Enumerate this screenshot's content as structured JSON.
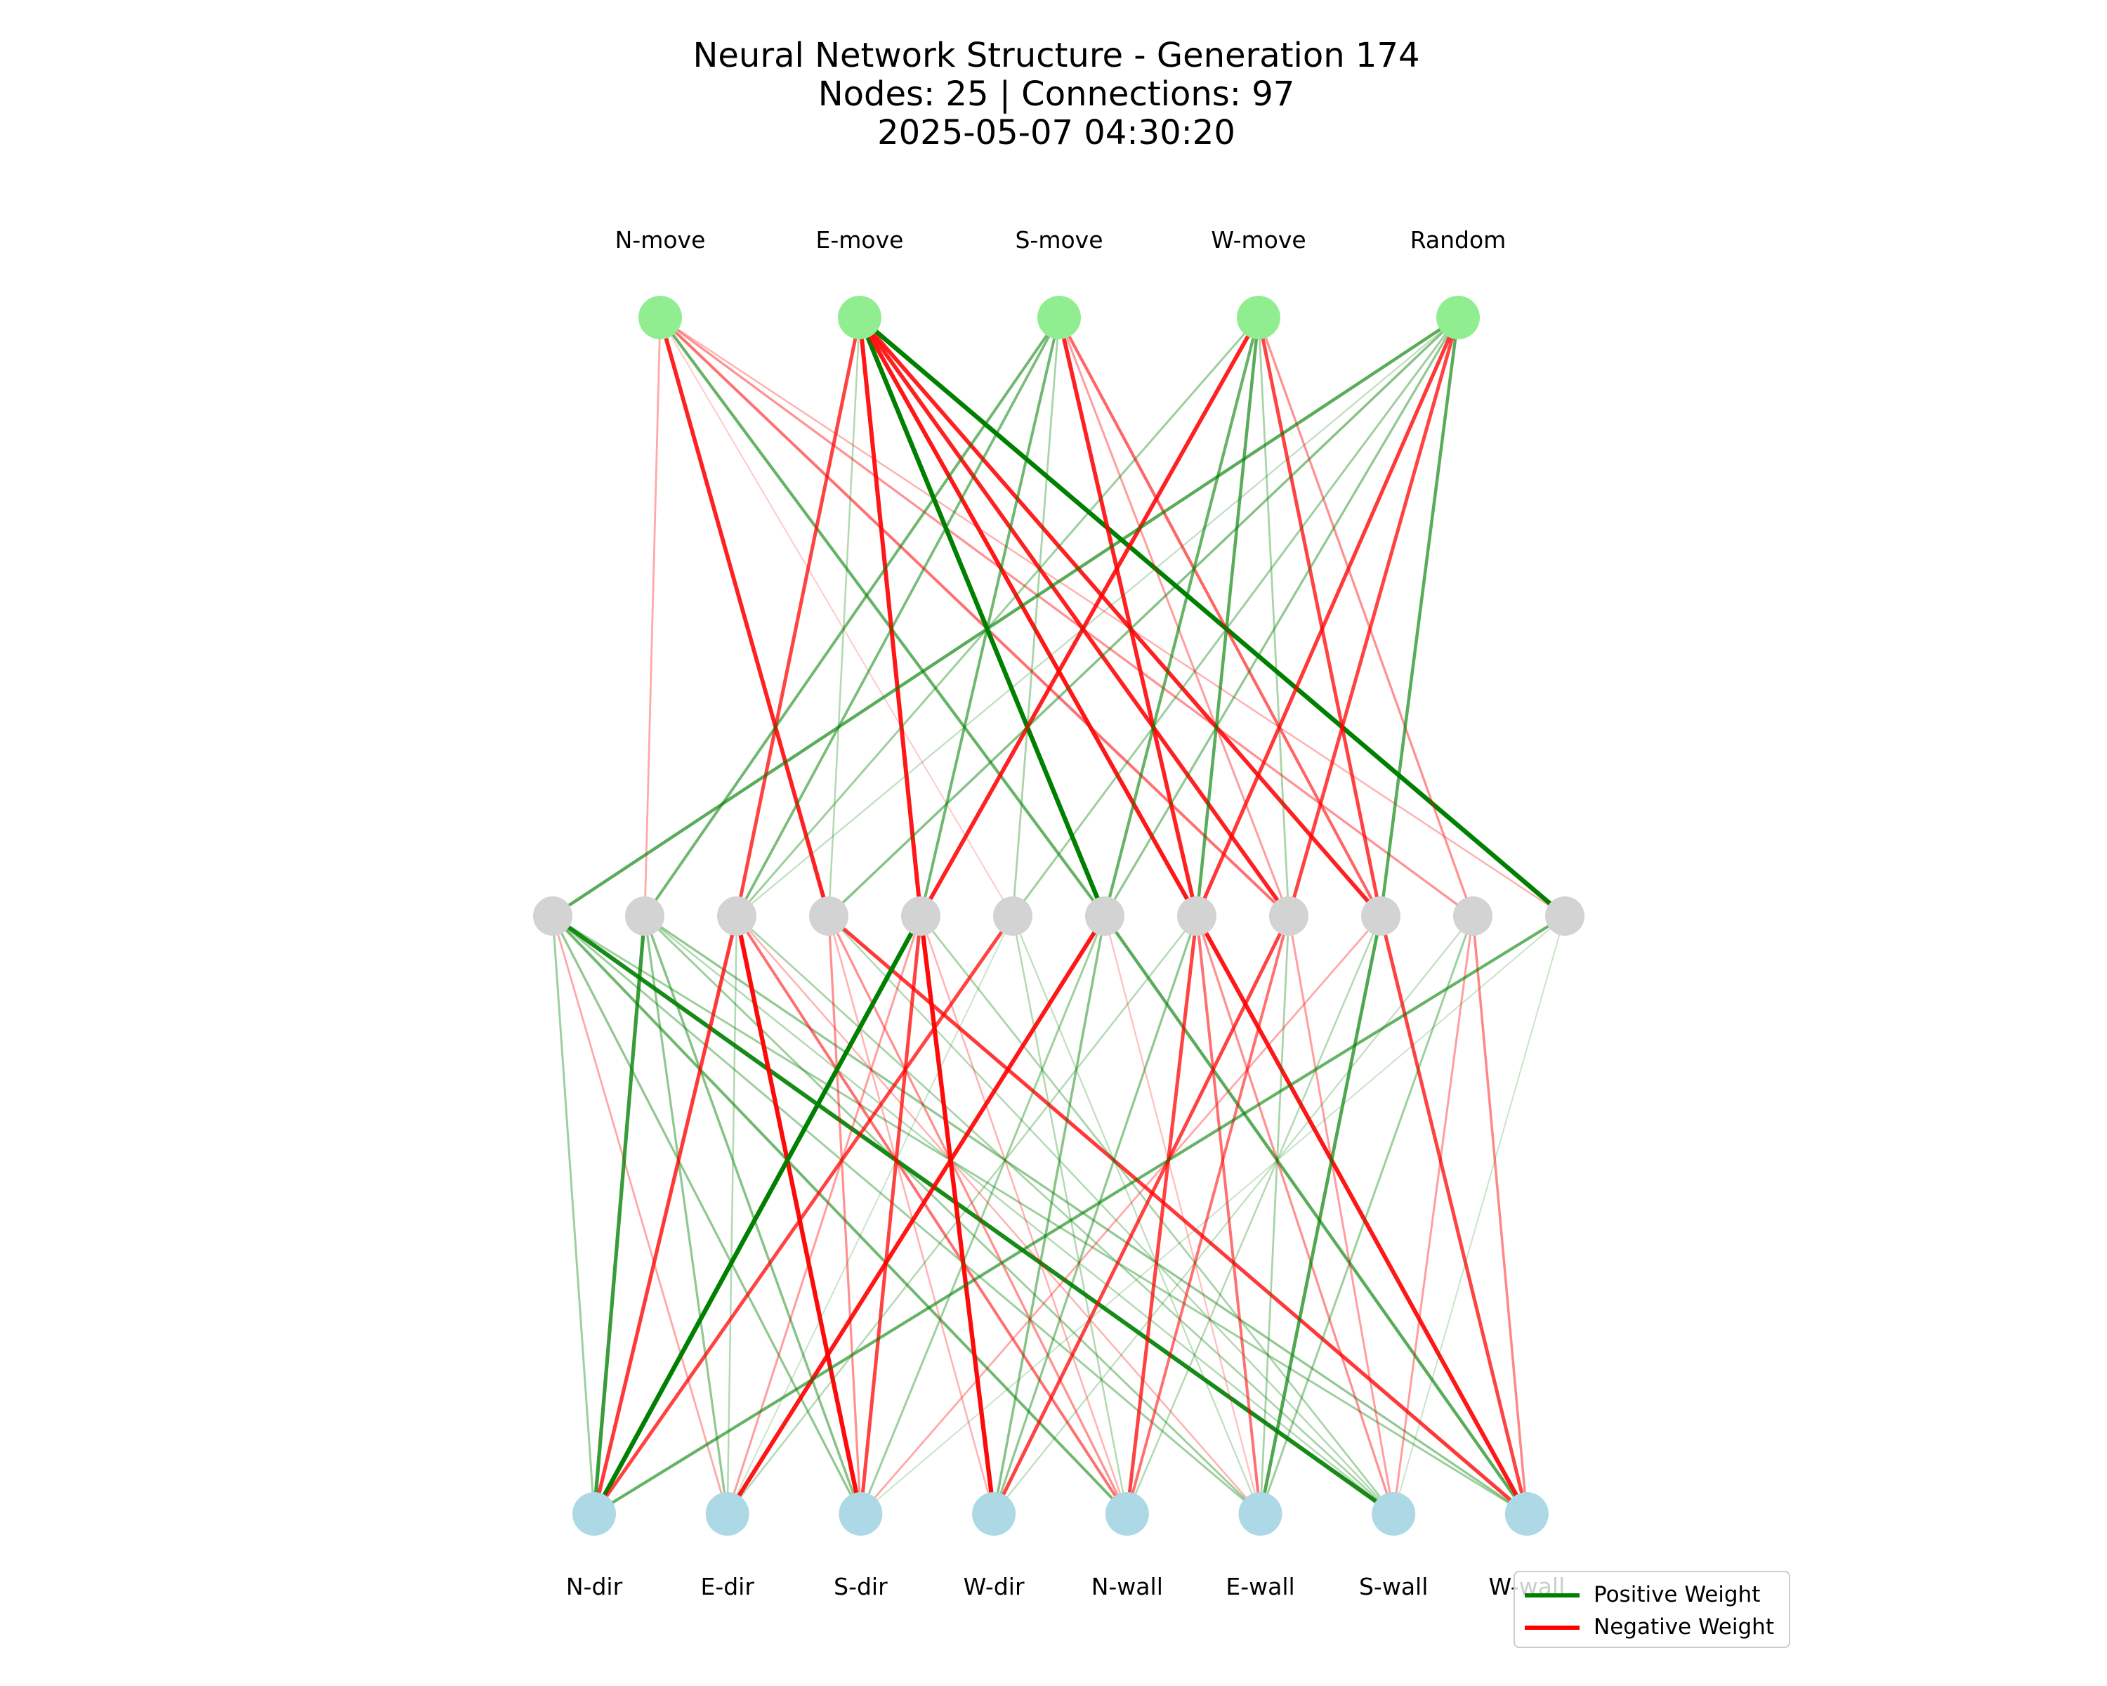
{
  "title": {
    "line1": "Neural Network Structure - Generation 174",
    "line2": "Nodes: 25 | Connections: 97",
    "line3": "2025-05-07 04:30:20"
  },
  "colors": {
    "positive": "#008000",
    "negative": "#ff0000",
    "output_node": "#90ee90",
    "hidden_node": "#d3d3d3",
    "input_node": "#add8e6"
  },
  "layers": {
    "outputs": [
      "N-move",
      "E-move",
      "S-move",
      "W-move",
      "Random"
    ],
    "hidden_count": 12,
    "inputs": [
      "N-dir",
      "E-dir",
      "S-dir",
      "W-dir",
      "N-wall",
      "E-wall",
      "S-wall",
      "W-wall"
    ]
  },
  "connections": [
    {
      "from": "o0",
      "to": "h1",
      "weight": -0.25
    },
    {
      "from": "o0",
      "to": "h3",
      "weight": -0.85
    },
    {
      "from": "o0",
      "to": "h5",
      "weight": -0.1
    },
    {
      "from": "o0",
      "to": "h6",
      "weight": 0.55
    },
    {
      "from": "o0",
      "to": "h8",
      "weight": -0.5
    },
    {
      "from": "o0",
      "to": "h10",
      "weight": -0.35
    },
    {
      "from": "o0",
      "to": "h11",
      "weight": -0.2
    },
    {
      "from": "o1",
      "to": "h2",
      "weight": -0.7
    },
    {
      "from": "o1",
      "to": "h4",
      "weight": -0.9
    },
    {
      "from": "o1",
      "to": "h6",
      "weight": 1.0
    },
    {
      "from": "o1",
      "to": "h7",
      "weight": -0.9
    },
    {
      "from": "o1",
      "to": "h8",
      "weight": -0.85
    },
    {
      "from": "o1",
      "to": "h9",
      "weight": -0.85
    },
    {
      "from": "o1",
      "to": "h11",
      "weight": 1.0
    },
    {
      "from": "o1",
      "to": "h3",
      "weight": 0.2
    },
    {
      "from": "o2",
      "to": "h1",
      "weight": 0.5
    },
    {
      "from": "o2",
      "to": "h2",
      "weight": 0.45
    },
    {
      "from": "o2",
      "to": "h4",
      "weight": 0.5
    },
    {
      "from": "o2",
      "to": "h7",
      "weight": -0.85
    },
    {
      "from": "o2",
      "to": "h8",
      "weight": -0.3
    },
    {
      "from": "o2",
      "to": "h9",
      "weight": -0.55
    },
    {
      "from": "o2",
      "to": "h5",
      "weight": 0.25
    },
    {
      "from": "o3",
      "to": "h2",
      "weight": 0.3
    },
    {
      "from": "o3",
      "to": "h4",
      "weight": -0.85
    },
    {
      "from": "o3",
      "to": "h6",
      "weight": 0.55
    },
    {
      "from": "o3",
      "to": "h7",
      "weight": 0.6
    },
    {
      "from": "o3",
      "to": "h8",
      "weight": 0.25
    },
    {
      "from": "o3",
      "to": "h9",
      "weight": -0.7
    },
    {
      "from": "o3",
      "to": "h10",
      "weight": -0.35
    },
    {
      "from": "o4",
      "to": "h0",
      "weight": 0.6
    },
    {
      "from": "o4",
      "to": "h3",
      "weight": 0.4
    },
    {
      "from": "o4",
      "to": "h5",
      "weight": 0.3
    },
    {
      "from": "o4",
      "to": "h6",
      "weight": 0.35
    },
    {
      "from": "o4",
      "to": "h7",
      "weight": -0.75
    },
    {
      "from": "o4",
      "to": "h8",
      "weight": -0.7
    },
    {
      "from": "o4",
      "to": "h9",
      "weight": 0.6
    },
    {
      "from": "o4",
      "to": "h2",
      "weight": 0.15
    },
    {
      "from": "h0",
      "to": "i0",
      "weight": 0.3
    },
    {
      "from": "h0",
      "to": "i2",
      "weight": 0.35
    },
    {
      "from": "h0",
      "to": "i4",
      "weight": 0.5
    },
    {
      "from": "h0",
      "to": "i5",
      "weight": 0.3
    },
    {
      "from": "h0",
      "to": "i6",
      "weight": 0.9
    },
    {
      "from": "h0",
      "to": "i7",
      "weight": 0.3
    },
    {
      "from": "h0",
      "to": "i1",
      "weight": -0.25
    },
    {
      "from": "h1",
      "to": "i0",
      "weight": 0.75
    },
    {
      "from": "h1",
      "to": "i1",
      "weight": 0.35
    },
    {
      "from": "h1",
      "to": "i2",
      "weight": 0.4
    },
    {
      "from": "h1",
      "to": "i5",
      "weight": 0.3
    },
    {
      "from": "h1",
      "to": "i6",
      "weight": 0.2
    },
    {
      "from": "h1",
      "to": "i7",
      "weight": 0.35
    },
    {
      "from": "h2",
      "to": "i0",
      "weight": -0.75
    },
    {
      "from": "h2",
      "to": "i2",
      "weight": -0.95
    },
    {
      "from": "h2",
      "to": "i4",
      "weight": -0.5
    },
    {
      "from": "h2",
      "to": "i5",
      "weight": -0.2
    },
    {
      "from": "h2",
      "to": "i6",
      "weight": 0.25
    },
    {
      "from": "h2",
      "to": "i1",
      "weight": 0.2
    },
    {
      "from": "h3",
      "to": "i2",
      "weight": -0.35
    },
    {
      "from": "h3",
      "to": "i3",
      "weight": -0.2
    },
    {
      "from": "h3",
      "to": "i4",
      "weight": -0.35
    },
    {
      "from": "h3",
      "to": "i7",
      "weight": -0.75
    },
    {
      "from": "h3",
      "to": "i6",
      "weight": 0.2
    },
    {
      "from": "h4",
      "to": "i0",
      "weight": 1.0
    },
    {
      "from": "h4",
      "to": "i1",
      "weight": -0.3
    },
    {
      "from": "h4",
      "to": "i2",
      "weight": -0.7
    },
    {
      "from": "h4",
      "to": "i3",
      "weight": -0.95
    },
    {
      "from": "h4",
      "to": "i4",
      "weight": -0.2
    },
    {
      "from": "h4",
      "to": "i6",
      "weight": 0.25
    },
    {
      "from": "h5",
      "to": "i0",
      "weight": -0.7
    },
    {
      "from": "h5",
      "to": "i1",
      "weight": 0.1
    },
    {
      "from": "h5",
      "to": "i4",
      "weight": 0.2
    },
    {
      "from": "h5",
      "to": "i5",
      "weight": 0.15
    },
    {
      "from": "h6",
      "to": "i1",
      "weight": -0.9
    },
    {
      "from": "h6",
      "to": "i2",
      "weight": 0.3
    },
    {
      "from": "h6",
      "to": "i3",
      "weight": 0.4
    },
    {
      "from": "h6",
      "to": "i7",
      "weight": 0.6
    },
    {
      "from": "h6",
      "to": "i5",
      "weight": -0.15
    },
    {
      "from": "h7",
      "to": "i3",
      "weight": 0.35
    },
    {
      "from": "h7",
      "to": "i4",
      "weight": -0.7
    },
    {
      "from": "h7",
      "to": "i5",
      "weight": -0.5
    },
    {
      "from": "h7",
      "to": "i6",
      "weight": -0.35
    },
    {
      "from": "h7",
      "to": "i7",
      "weight": -0.9
    },
    {
      "from": "h7",
      "to": "i1",
      "weight": 0.2
    },
    {
      "from": "h8",
      "to": "i3",
      "weight": -0.7
    },
    {
      "from": "h8",
      "to": "i4",
      "weight": -0.5
    },
    {
      "from": "h8",
      "to": "i5",
      "weight": 0.25
    },
    {
      "from": "h8",
      "to": "i6",
      "weight": -0.3
    },
    {
      "from": "h9",
      "to": "i2",
      "weight": -0.25
    },
    {
      "from": "h9",
      "to": "i5",
      "weight": 0.65
    },
    {
      "from": "h9",
      "to": "i7",
      "weight": -0.7
    },
    {
      "from": "h9",
      "to": "i4",
      "weight": 0.2
    },
    {
      "from": "h10",
      "to": "i5",
      "weight": 0.3
    },
    {
      "from": "h10",
      "to": "i6",
      "weight": -0.3
    },
    {
      "from": "h10",
      "to": "i7",
      "weight": -0.4
    },
    {
      "from": "h10",
      "to": "i3",
      "weight": 0.15
    },
    {
      "from": "h11",
      "to": "i0",
      "weight": 0.55
    },
    {
      "from": "h11",
      "to": "i6",
      "weight": 0.1
    },
    {
      "from": "h11",
      "to": "i2",
      "weight": 0.1
    }
  ],
  "legend": {
    "positive_label": "Positive Weight",
    "negative_label": "Negative Weight"
  }
}
